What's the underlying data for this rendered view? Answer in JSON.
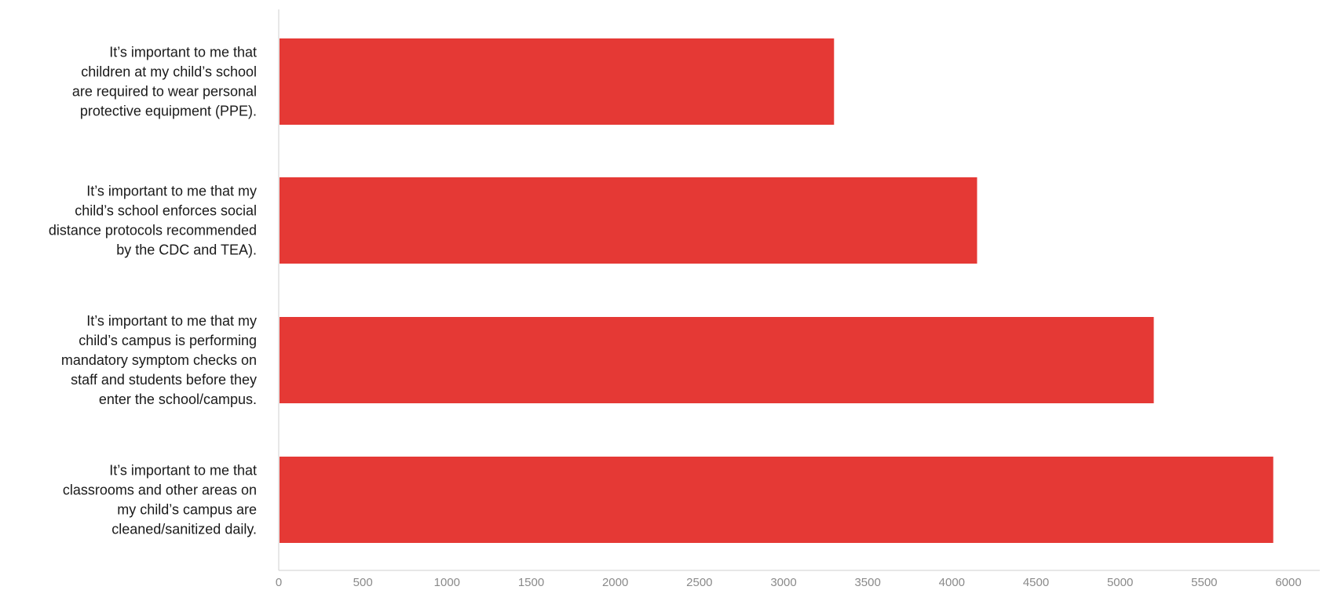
{
  "chart_data": {
    "type": "bar",
    "orientation": "horizontal",
    "categories": [
      [
        "It’s important to me that",
        "children at my child’s school",
        "are required to wear personal",
        "protective equipment (PPE)."
      ],
      [
        "It’s important to me that my",
        "child’s school enforces social",
        "distance protocols recommended",
        "by the CDC and TEA)."
      ],
      [
        "It’s important to me that my",
        "child’s campus is performing",
        "mandatory symptom checks on",
        "staff and students before they",
        "enter the school/campus."
      ],
      [
        "It’s important to me that",
        "classrooms and other areas on",
        "my child’s campus are",
        "cleaned/sanitized daily."
      ]
    ],
    "values": [
      3300,
      4150,
      5200,
      5910
    ],
    "xlim": [
      0,
      6000
    ],
    "xticks": [
      "0",
      "500",
      "1000",
      "1500",
      "2000",
      "2500",
      "3000",
      "3500",
      "4000",
      "4500",
      "5000",
      "5500",
      "6000"
    ],
    "grid": false,
    "legend": "none",
    "bar_color": "#e53935",
    "axis_color": "#cfcfcf",
    "label_color": "#1a1a1a",
    "tick_color": "#8a8a8a"
  }
}
